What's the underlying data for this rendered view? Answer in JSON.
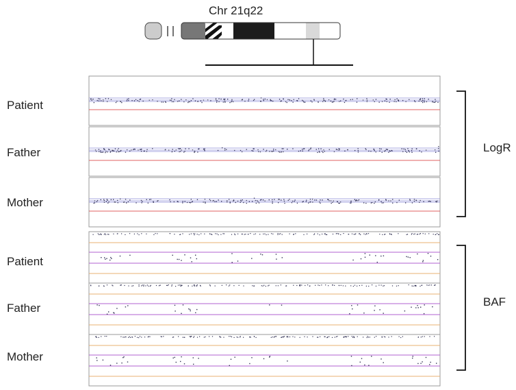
{
  "chromosome": {
    "title": "Chr 21q22"
  },
  "panels": {
    "logr": {
      "group_label": "LogR",
      "rows": [
        {
          "label": "Patient",
          "points": 200,
          "seed": 11
        },
        {
          "label": "Father",
          "points": 190,
          "seed": 23
        },
        {
          "label": "Mother",
          "points": 190,
          "seed": 37
        }
      ]
    },
    "baf": {
      "group_label": "BAF",
      "rows": [
        {
          "label": "Patient",
          "seed": 51
        },
        {
          "label": "Father",
          "seed": 67
        },
        {
          "label": "Mother",
          "seed": 83
        }
      ]
    }
  },
  "colors": {
    "logr_line_blue": "#8c8cd8",
    "logr_line_red": "#e06060",
    "baf_line_purple": "#b060d0",
    "baf_line_orange": "#e8b070",
    "points": "#333355",
    "panel_border": "#999999"
  }
}
